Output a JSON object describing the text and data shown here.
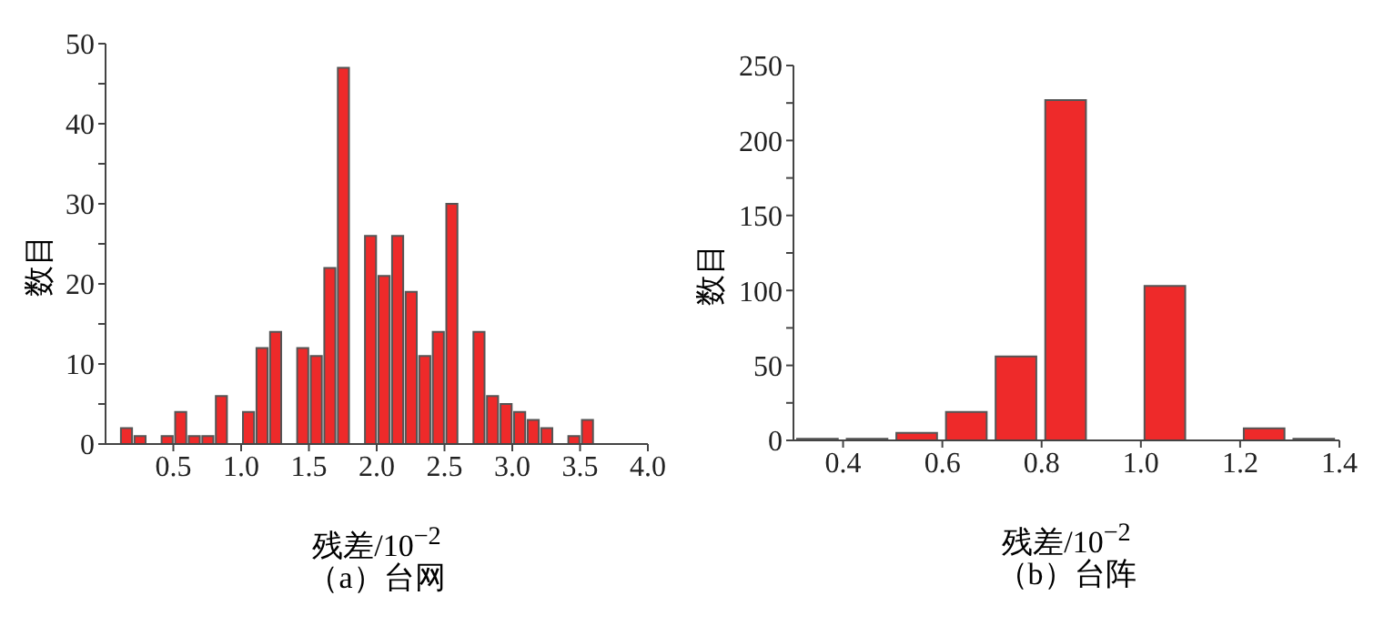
{
  "chart_data": [
    {
      "type": "histogram",
      "xlabel": "残差/10$^{−2}$",
      "ylabel": "数目",
      "annotations": [
        "（a）台网"
      ],
      "color": "#ee2a2a",
      "bins": [
        0.1,
        0.2,
        0.3,
        0.4,
        0.5,
        0.6,
        0.7,
        0.8,
        0.9,
        1.0,
        1.1,
        1.2,
        1.3,
        1.4,
        1.5,
        1.6,
        1.7,
        1.8,
        1.9,
        2.0,
        2.1,
        2.2,
        2.3,
        2.4,
        2.5,
        2.6,
        2.7,
        2.8,
        2.9,
        3.0,
        3.1,
        3.2,
        3.3,
        3.4,
        3.5,
        3.6
      ],
      "values": [
        2,
        1,
        0,
        1,
        4,
        1,
        1,
        6,
        0,
        4,
        12,
        14,
        0,
        12,
        11,
        22,
        47,
        0,
        26,
        21,
        26,
        19,
        11,
        14,
        30,
        0,
        14,
        6,
        5,
        4,
        3,
        2,
        0,
        1,
        3
      ],
      "xlim": [
        0,
        4
      ],
      "xticks": [
        {
          "value": 0.5,
          "label": "0.5"
        },
        {
          "value": 1,
          "label": "1.0"
        },
        {
          "value": 1.5,
          "label": "1.5"
        },
        {
          "value": 2,
          "label": "2.0"
        },
        {
          "value": 2.5,
          "label": "2.5"
        },
        {
          "value": 3,
          "label": "3.0"
        },
        {
          "value": 3.5,
          "label": "3.5"
        },
        {
          "value": 4,
          "label": "4.0"
        }
      ],
      "ylim": [
        0,
        50
      ],
      "yticks": [
        0,
        {
          "value": 5,
          "label": null
        },
        10,
        {
          "value": 15,
          "label": null
        },
        20,
        {
          "value": 25,
          "label": null
        },
        30,
        {
          "value": 35,
          "label": null
        },
        40,
        {
          "value": 45,
          "label": null
        },
        50
      ]
    },
    {
      "type": "histogram",
      "xlabel": "残差/10$^{−2}$",
      "ylabel": "数目",
      "annotations": [
        "（b）台阵"
      ],
      "color": "#ee2a2a",
      "bins": [
        0.3,
        0.4,
        0.5,
        0.6,
        0.7,
        0.8,
        0.9,
        1.0,
        1.1,
        1.2,
        1.3,
        1.4
      ],
      "values": [
        1,
        1,
        5,
        19,
        56,
        227,
        0,
        103,
        0,
        8,
        1
      ],
      "xlim": [
        0.3,
        1.4
      ],
      "xticks": [
        0.4,
        0.6,
        0.8,
        {
          "value": 1,
          "label": "1.0"
        },
        1.2,
        1.4
      ],
      "ylim": [
        0,
        250
      ],
      "yticks": [
        0,
        {
          "value": 25,
          "label": null
        },
        50,
        {
          "value": 75,
          "label": null
        },
        100,
        {
          "value": 125,
          "label": null
        },
        150,
        {
          "value": 175,
          "label": null
        },
        200,
        {
          "value": 225,
          "label": null
        },
        250
      ]
    }
  ]
}
